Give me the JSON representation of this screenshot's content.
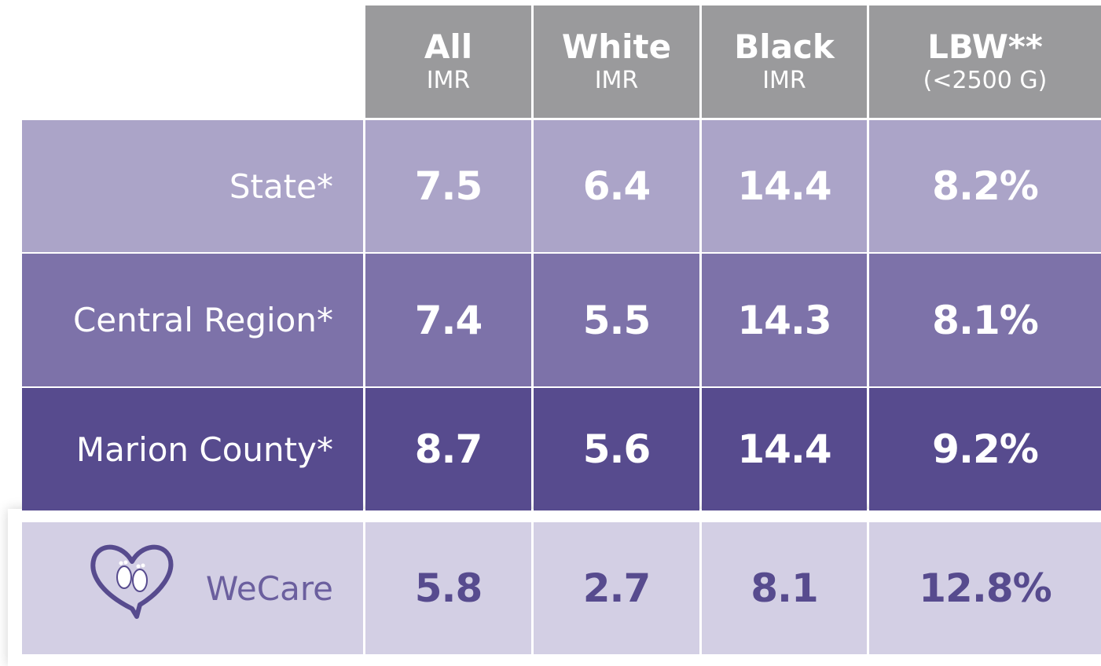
{
  "header": {
    "columns": [
      {
        "title": "All",
        "subtitle": "IMR"
      },
      {
        "title": "White",
        "subtitle": "IMR"
      },
      {
        "title": "Black",
        "subtitle": "IMR"
      },
      {
        "title": "LBW**",
        "subtitle": "(<2500 G)"
      }
    ]
  },
  "rows": [
    {
      "label": "State*",
      "values": [
        "7.5",
        "6.4",
        "14.4",
        "8.2%"
      ]
    },
    {
      "label": "Central Region*",
      "values": [
        "7.4",
        "5.5",
        "14.3",
        "8.1%"
      ]
    },
    {
      "label": "Marion County*",
      "values": [
        "8.7",
        "5.6",
        "14.4",
        "9.2%"
      ]
    },
    {
      "label": "WeCare",
      "values": [
        "5.8",
        "2.7",
        "8.1",
        "12.8%"
      ]
    }
  ]
}
